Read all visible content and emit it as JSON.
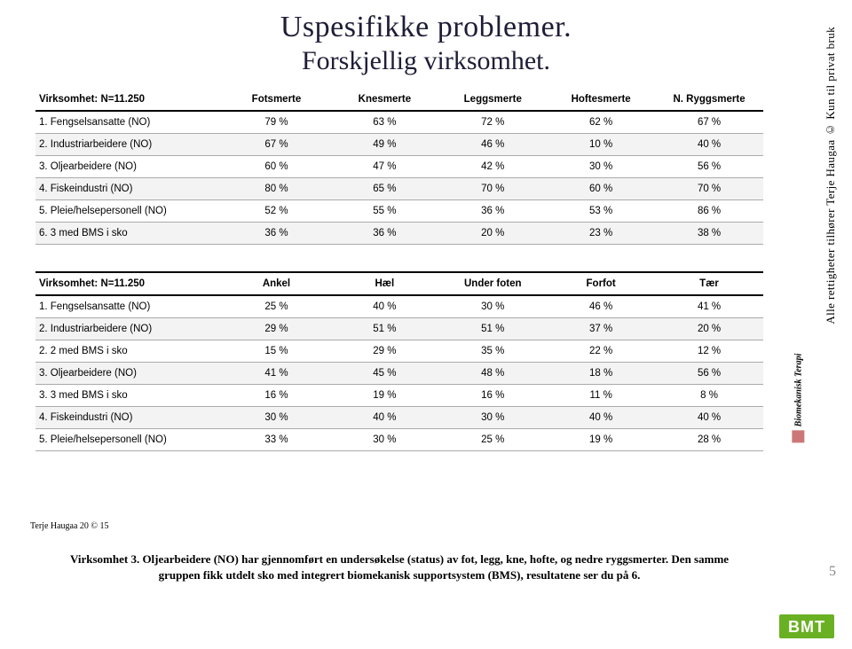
{
  "title": {
    "line1": "Uspesifikke problemer.",
    "line2": "Forskjellig virksomhet."
  },
  "table1": {
    "header_label": "Virksomhet: N=11.250",
    "columns": [
      "Fotsmerte",
      "Knesmerte",
      "Leggsmerte",
      "Hoftesmerte",
      "N. Ryggsmerte"
    ],
    "rows": [
      {
        "label": "1. Fengselsansatte (NO)",
        "vals": [
          "79 %",
          "63 %",
          "72 %",
          "62 %",
          "67 %"
        ]
      },
      {
        "label": "2. Industriarbeidere (NO)",
        "vals": [
          "67 %",
          "49 %",
          "46 %",
          "10 %",
          "40 %"
        ]
      },
      {
        "label": "3. Oljearbeidere (NO)",
        "vals": [
          "60 %",
          "47 %",
          "42 %",
          "30 %",
          "56 %"
        ]
      },
      {
        "label": "4. Fiskeindustri (NO)",
        "vals": [
          "80 %",
          "65 %",
          "70 %",
          "60 %",
          "70 %"
        ]
      },
      {
        "label": "5. Pleie/helsepersonell (NO)",
        "vals": [
          "52 %",
          "55 %",
          "36 %",
          "53 %",
          "86 %"
        ]
      },
      {
        "label": "6. 3 med BMS i sko",
        "vals": [
          "36 %",
          "36 %",
          "20 %",
          "23 %",
          "38 %"
        ]
      }
    ]
  },
  "table2": {
    "header_label": "Virksomhet: N=11.250",
    "columns": [
      "Ankel",
      "Hæl",
      "Under foten",
      "Forfot",
      "Tær"
    ],
    "rows": [
      {
        "label": "1. Fengselsansatte (NO)",
        "vals": [
          "25 %",
          "40 %",
          "30 %",
          "46 %",
          "41 %"
        ]
      },
      {
        "label": "2. Industriarbeidere (NO)",
        "vals": [
          "29 %",
          "51 %",
          "51 %",
          "37 %",
          "20 %"
        ]
      },
      {
        "label": "2. 2 med BMS i sko",
        "vals": [
          "15 %",
          "29 %",
          "35 %",
          "22 %",
          "12 %"
        ]
      },
      {
        "label": "3. Oljearbeidere (NO)",
        "vals": [
          "41 %",
          "45 %",
          "48 %",
          "18 %",
          "56 %"
        ]
      },
      {
        "label": "3. 3 med BMS i sko",
        "vals": [
          "16 %",
          "19 %",
          "16 %",
          "11 %",
          "8 %"
        ]
      },
      {
        "label": "4. Fiskeindustri (NO)",
        "vals": [
          "30 %",
          "40 %",
          "30 %",
          "40 %",
          "40 %"
        ]
      },
      {
        "label": "5. Pleie/helsepersonell (NO)",
        "vals": [
          "33 %",
          "30 %",
          "25 %",
          "19 %",
          "28 %"
        ]
      }
    ]
  },
  "sidebar_text": "Alle rettigheter tilhører Terje Haugaa © Kun til privat bruk",
  "sidebar_logo_text": "Biomekanisk Terapi",
  "footer_left": "Terje Haugaa 20 © 15",
  "caption": "Virksomhet 3. Oljearbeidere (NO) har gjennomført en undersøkelse (status) av fot, legg, kne, hofte, og nedre ryggsmerter. Den samme gruppen fikk utdelt sko med integrert biomekanisk supportsystem (BMS), resultatene ser du på 6.",
  "page_number": "5",
  "bmt_label": "BMT"
}
